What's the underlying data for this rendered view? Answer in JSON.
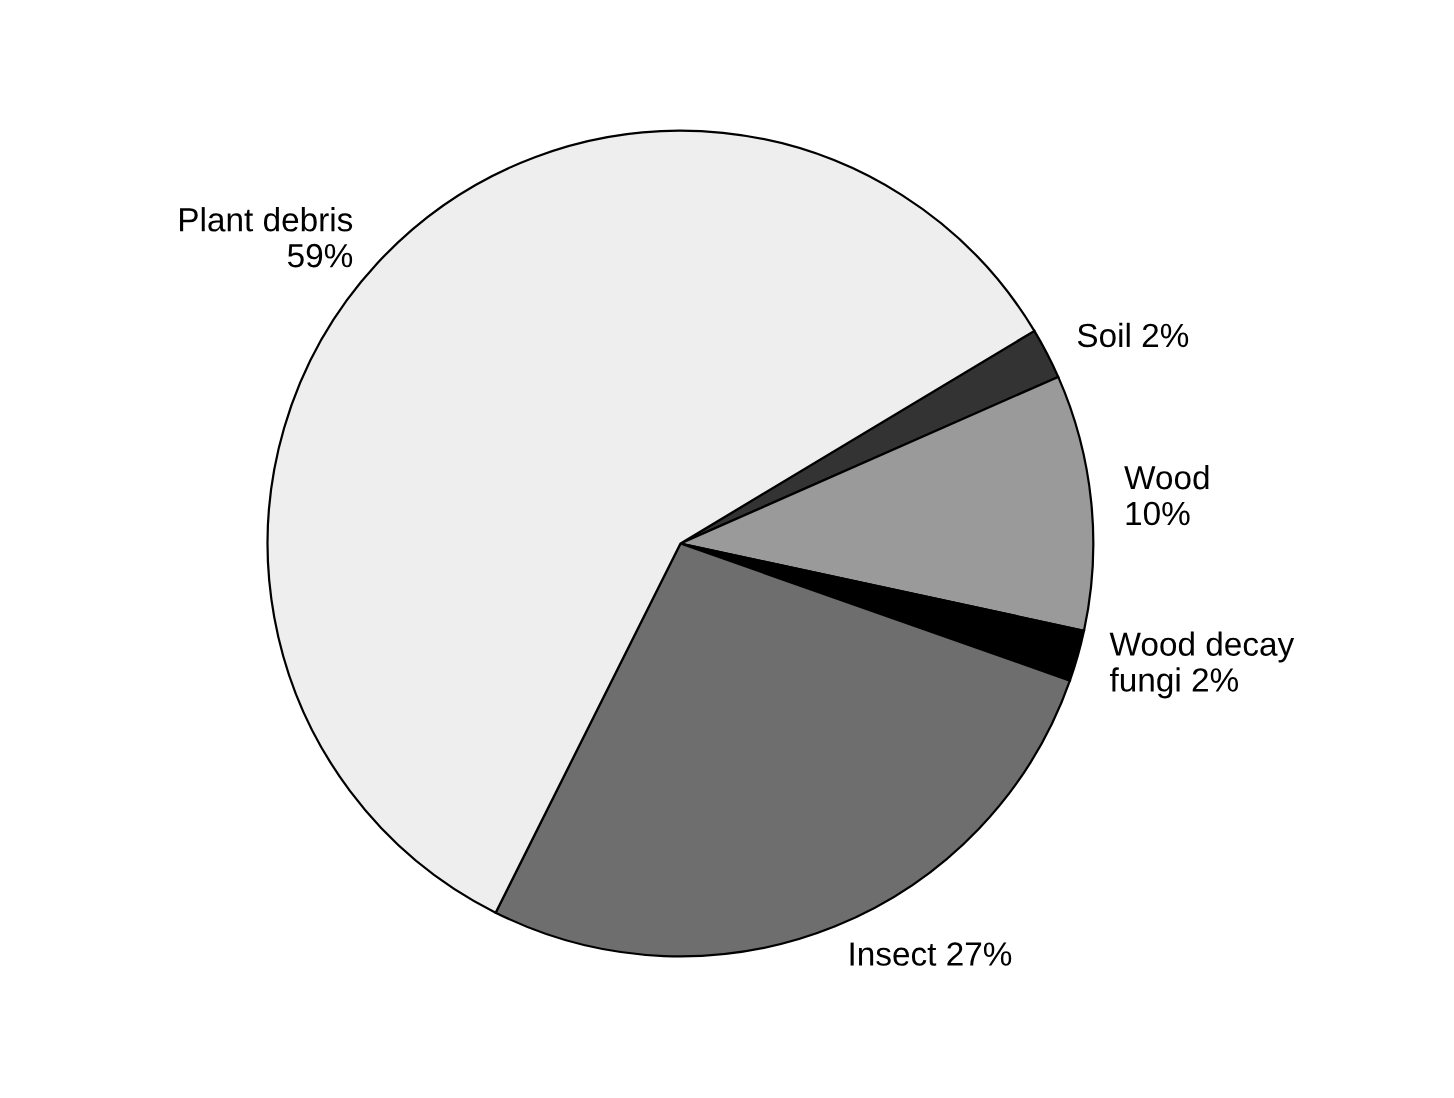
{
  "chart_data": {
    "type": "pie",
    "categories": [
      "Soil 2%",
      "Wood\n10%",
      "Wood decay\nfungi 2%",
      "Insect 27%",
      "Plant debris\n59%"
    ],
    "values": [
      2,
      10,
      2,
      27,
      59
    ],
    "colors": [
      "#333333",
      "#9a9a9a",
      "#000000",
      "#6e6e6e",
      "#eeeeee"
    ]
  }
}
